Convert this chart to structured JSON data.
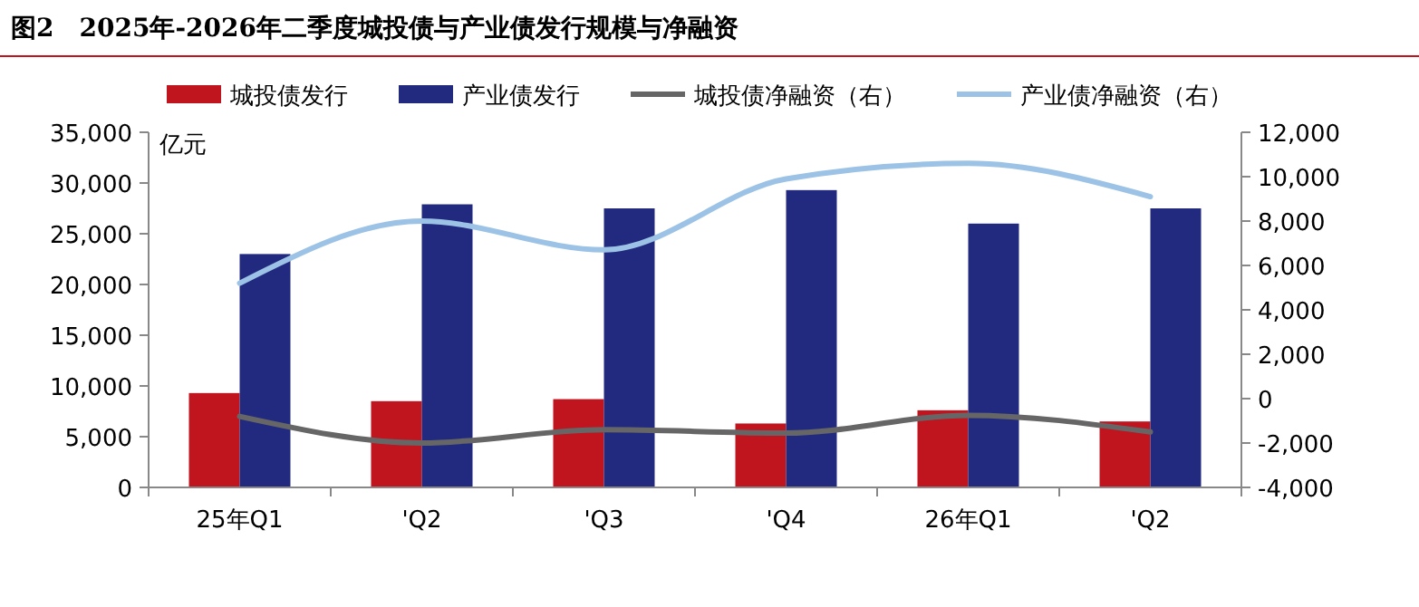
{
  "chart_data": {
    "type": "bar",
    "title": "图2　2025年-2026年二季度城投债与产业债发行规模与净融资",
    "ylabel": "亿元",
    "categories": [
      "25年Q1",
      "'Q2",
      "'Q3",
      "'Q4",
      "26年Q1",
      "'Q2"
    ],
    "series": [
      {
        "name": "城投债发行",
        "color": "#c0141f",
        "values": [
          9300,
          8500,
          8700,
          6300,
          7600,
          6500
        ]
      },
      {
        "name": "产业债发行",
        "color": "#222a80",
        "values": [
          23000,
          27900,
          27500,
          29300,
          26000,
          27500
        ]
      },
      {
        "name": "城投债净融资（右）",
        "type": "line",
        "axis": "y2",
        "color": "#666666",
        "values": [
          -800,
          -2000,
          -1400,
          -1550,
          -750,
          -1500
        ]
      },
      {
        "name": "产业债净融资（右）",
        "type": "line",
        "axis": "y2",
        "color": "#9cc3e6",
        "values": [
          5200,
          8000,
          6700,
          9900,
          10600,
          9100
        ]
      }
    ],
    "ylim": [
      0,
      35000
    ],
    "yticks": [
      0,
      {
        "value": 5000,
        "label": "5,000"
      },
      {
        "value": 10000,
        "label": "10,000"
      },
      {
        "value": 15000,
        "label": "15,000"
      },
      {
        "value": 20000,
        "label": "20,000"
      },
      {
        "value": 25000,
        "label": "25,000"
      },
      {
        "value": 30000,
        "label": "30,000"
      },
      {
        "value": 35000,
        "label": "35,000"
      }
    ],
    "y2lim": [
      -4000,
      12000
    ],
    "y2ticks": [
      {
        "value": -4000,
        "label": "-4,000"
      },
      {
        "value": -2000,
        "label": "-2,000"
      },
      0,
      {
        "value": 2000,
        "label": "2,000"
      },
      {
        "value": 4000,
        "label": "4,000"
      },
      {
        "value": 6000,
        "label": "6,000"
      },
      {
        "value": 8000,
        "label": "8,000"
      },
      {
        "value": 10000,
        "label": "10,000"
      },
      {
        "value": 12000,
        "label": "12,000"
      }
    ],
    "legend": "top",
    "grid": false
  }
}
